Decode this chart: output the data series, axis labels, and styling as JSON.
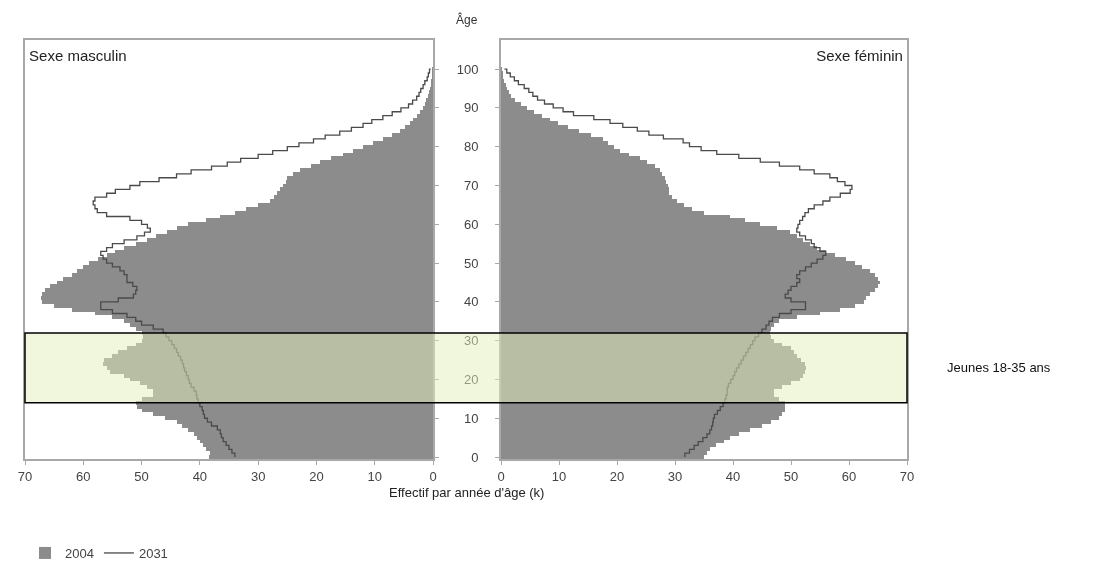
{
  "chart_data": [
    {
      "type": "bar",
      "orientation": "horizontal",
      "title": "Sexe masculin",
      "xlabel": "Effectif par année d'âge (k)",
      "tick_labels": "x",
      "legend": "bottom left",
      "grid": false,
      "x": [
        0,
        1,
        2,
        3,
        4,
        5,
        6,
        7,
        8,
        9,
        10,
        11,
        12,
        13,
        14,
        15,
        16,
        17,
        18,
        19,
        20,
        21,
        22,
        23,
        24,
        25,
        26,
        27,
        28,
        29,
        30,
        31,
        32,
        33,
        34,
        35,
        36,
        37,
        38,
        39,
        40,
        41,
        42,
        43,
        44,
        45,
        46,
        47,
        48,
        49,
        50,
        51,
        52,
        53,
        54,
        55,
        56,
        57,
        58,
        59,
        60,
        61,
        62,
        63,
        64,
        65,
        66,
        67,
        68,
        69,
        70,
        71,
        72,
        73,
        74,
        75,
        76,
        77,
        78,
        79,
        80,
        81,
        82,
        83,
        84,
        85,
        86,
        87,
        88,
        89,
        90,
        91,
        92,
        93,
        94,
        95,
        96,
        97,
        98,
        99,
        100
      ],
      "xlim": [
        70,
        0
      ],
      "xticks": [
        70,
        60,
        50,
        40,
        30,
        20,
        10,
        0
      ],
      "ylim": [
        -0.5,
        107.5
      ],
      "yticks": [
        0,
        10,
        20,
        30,
        40,
        50,
        60,
        70,
        80,
        90,
        100
      ],
      "series": [
        {
          "name": "2004",
          "color": "#8c8c8c",
          "values": [
            38.5,
            38.3,
            39,
            39.5,
            40,
            40.5,
            41,
            42,
            43,
            44,
            46,
            48,
            50,
            50.8,
            51,
            50,
            48,
            48,
            49,
            50.3,
            52,
            53,
            55.4,
            56,
            56.6,
            56.4,
            55,
            54,
            52.5,
            51,
            50,
            49.7,
            50,
            51,
            52,
            53,
            55,
            58,
            62,
            65,
            67,
            67.2,
            67,
            66.5,
            65.7,
            64.5,
            63.5,
            62,
            61,
            60,
            59,
            57.5,
            56,
            54.5,
            53,
            51,
            49,
            47.5,
            45.6,
            44,
            42,
            39,
            36.5,
            34,
            32,
            30,
            28,
            27.2,
            26.8,
            26.2,
            25.7,
            25.3,
            25,
            24,
            22.8,
            21,
            19.4,
            17.5,
            15.4,
            13.7,
            12,
            10.3,
            8.6,
            7,
            5.7,
            4.8,
            4,
            3.4,
            2.8,
            2.2,
            1.7,
            1.4,
            1.2,
            0.9,
            0.7,
            0.5,
            0.4,
            0.3,
            0.2,
            0.1,
            0.1
          ]
        },
        {
          "name": "2031",
          "type": "step",
          "color": "#4a4a4a",
          "values": [
            34,
            34.5,
            35,
            35.5,
            36,
            36.3,
            36.5,
            37,
            38,
            38.7,
            39.2,
            39.4,
            39.6,
            40,
            40.3,
            40.5,
            40.6,
            41,
            41.5,
            41.8,
            42,
            42.3,
            42.6,
            42.8,
            43,
            43.3,
            43.7,
            44,
            44.4,
            44.8,
            45.3,
            45.8,
            46.3,
            48,
            50,
            51,
            52.5,
            55,
            57,
            57,
            54,
            51.4,
            51,
            50.8,
            51.5,
            52.5,
            52.5,
            53,
            53.7,
            55,
            56,
            56.6,
            57,
            56,
            55,
            53,
            50.8,
            49.5,
            48.5,
            49,
            50,
            52,
            56,
            57.6,
            58,
            58.3,
            58,
            56,
            54.5,
            52,
            50.3,
            47,
            44,
            41.5,
            38,
            35.3,
            33,
            30,
            27.5,
            25,
            23,
            20.5,
            18.5,
            16,
            14,
            12,
            10.5,
            8.6,
            7,
            5.5,
            4.2,
            3.5,
            2.8,
            2.4,
            2.1,
            1.7,
            1.4,
            1,
            0.8,
            0.6,
            0.4
          ]
        }
      ]
    },
    {
      "type": "bar",
      "orientation": "horizontal",
      "title": "Sexe féminin",
      "ylabel": "Âge",
      "grid": false,
      "x": [
        0,
        1,
        2,
        3,
        4,
        5,
        6,
        7,
        8,
        9,
        10,
        11,
        12,
        13,
        14,
        15,
        16,
        17,
        18,
        19,
        20,
        21,
        22,
        23,
        24,
        25,
        26,
        27,
        28,
        29,
        30,
        31,
        32,
        33,
        34,
        35,
        36,
        37,
        38,
        39,
        40,
        41,
        42,
        43,
        44,
        45,
        46,
        47,
        48,
        49,
        50,
        51,
        52,
        53,
        54,
        55,
        56,
        57,
        58,
        59,
        60,
        61,
        62,
        63,
        64,
        65,
        66,
        67,
        68,
        69,
        70,
        71,
        72,
        73,
        74,
        75,
        76,
        77,
        78,
        79,
        80,
        81,
        82,
        83,
        84,
        85,
        86,
        87,
        88,
        89,
        90,
        91,
        92,
        93,
        94,
        95,
        96,
        97,
        98,
        99,
        100
      ],
      "xlim": [
        0,
        70
      ],
      "xticks": [
        0,
        10,
        20,
        30,
        40,
        50,
        60,
        70
      ],
      "ylim": [
        -0.5,
        107.5
      ],
      "yticks": [
        0,
        10,
        20,
        30,
        40,
        50,
        60,
        70,
        80,
        90,
        100
      ],
      "bands": [
        {
          "axis": "y",
          "from": 14,
          "to": 32,
          "label": "Jeunes 18-35 ans",
          "color": "#e4f0bc"
        }
      ],
      "series": [
        {
          "color": "#8c8c8c",
          "values": [
            35,
            35.5,
            36,
            37,
            38.5,
            39.5,
            41,
            43,
            45,
            46.5,
            48,
            48.5,
            49,
            49,
            49,
            48,
            47,
            47,
            48.5,
            50,
            51.5,
            52,
            52.4,
            52.6,
            52.4,
            51.8,
            51,
            50.5,
            50,
            48.5,
            47,
            46.5,
            46.4,
            46.6,
            47,
            48,
            51,
            55,
            58.4,
            61,
            62.5,
            63,
            63.6,
            64.5,
            65,
            65.3,
            65,
            64.4,
            63.6,
            62.3,
            61,
            59.5,
            57.6,
            56,
            54.5,
            53.3,
            52,
            51,
            49.8,
            47.5,
            44.7,
            42,
            39.5,
            35,
            33,
            31.5,
            30.3,
            29.5,
            29,
            29,
            28.8,
            28.5,
            28.2,
            27.8,
            27.4,
            26.5,
            25.2,
            24,
            22,
            20.5,
            19.5,
            18.5,
            17.6,
            15.5,
            13.5,
            11.5,
            9.8,
            8.4,
            7,
            5.7,
            4.5,
            3.4,
            2.4,
            1.8,
            1.3,
            1,
            0.8,
            0.6,
            0.4,
            0.3,
            0.2
          ]
        },
        {
          "type": "step",
          "color": "#4a4a4a",
          "values": [
            31.7,
            32.5,
            33.3,
            34,
            34.8,
            35.5,
            36,
            36.3,
            36.5,
            36.6,
            36.8,
            37.3,
            37.8,
            38.3,
            38.6,
            38.8,
            39,
            39,
            39.2,
            39.6,
            40,
            40.3,
            40.6,
            41,
            41.4,
            41.8,
            42.2,
            42.6,
            43,
            43.4,
            43.8,
            44.4,
            45,
            45.7,
            46.2,
            46.8,
            48,
            50,
            52.5,
            52.5,
            50,
            49,
            49.5,
            50,
            51,
            51.5,
            51,
            51.5,
            52.5,
            53.5,
            54.5,
            55.5,
            56,
            55,
            54,
            53.5,
            52.5,
            51.5,
            51,
            51.2,
            51.5,
            52,
            52.4,
            53,
            54,
            55.5,
            56.7,
            58.5,
            60.2,
            60.5,
            59.3,
            58,
            56.7,
            54,
            51.5,
            48,
            44.7,
            41,
            37.2,
            34.5,
            32.5,
            31.4,
            28,
            25.5,
            23.5,
            21,
            18.8,
            16,
            12.5,
            10.7,
            9,
            7.5,
            6.3,
            5.5,
            4.8,
            4,
            3,
            2.3,
            1.6,
            1,
            0.6
          ]
        }
      ]
    }
  ]
}
